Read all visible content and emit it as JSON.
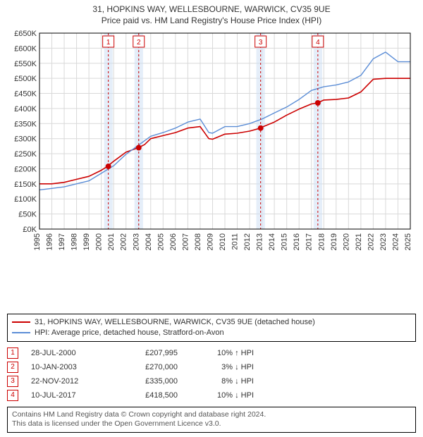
{
  "title_line1": "31, HOPKINS WAY, WELLESBOURNE, WARWICK, CV35 9UE",
  "title_line2": "Price paid vs. HM Land Registry's House Price Index (HPI)",
  "chart": {
    "type": "line",
    "background_color": "#ffffff",
    "plot_border_color": "#000000",
    "grid_color": "#d9d9d9",
    "font_size_axis": 11,
    "x": {
      "min": 1995,
      "max": 2025,
      "tick_step": 1,
      "ticks": [
        1995,
        1996,
        1997,
        1998,
        1999,
        2000,
        2001,
        2002,
        2003,
        2004,
        2005,
        2006,
        2007,
        2008,
        2009,
        2010,
        2011,
        2012,
        2013,
        2014,
        2015,
        2016,
        2017,
        2018,
        2019,
        2020,
        2021,
        2022,
        2023,
        2024,
        2025
      ]
    },
    "y": {
      "min": 0,
      "max": 650000,
      "tick_step": 50000,
      "prefix": "£",
      "suffix": "K",
      "ticks": [
        0,
        50000,
        100000,
        150000,
        200000,
        250000,
        300000,
        350000,
        400000,
        450000,
        500000,
        550000,
        600000,
        650000
      ]
    },
    "series": [
      {
        "id": "property",
        "label": "31, HOPKINS WAY, WELLESBOURNE, WARWICK, CV35 9UE (detached house)",
        "color": "#cc0000",
        "line_width": 1.6,
        "x": [
          1995,
          1996,
          1997,
          1998,
          1999,
          2000,
          2000.5,
          2001,
          2002,
          2003,
          2003.5,
          2004,
          2005,
          2006,
          2007,
          2008,
          2008.7,
          2009,
          2010,
          2011,
          2012,
          2012.9,
          2013,
          2014,
          2015,
          2016,
          2017,
          2017.5,
          2018,
          2019,
          2020,
          2021,
          2022,
          2023,
          2024,
          2025
        ],
        "y": [
          150000,
          150000,
          155000,
          165000,
          175000,
          195000,
          207995,
          225000,
          255000,
          270000,
          280000,
          300000,
          310000,
          320000,
          335000,
          340000,
          300000,
          298000,
          315000,
          318000,
          325000,
          335000,
          338000,
          355000,
          378000,
          398000,
          415000,
          418500,
          428000,
          430000,
          435000,
          455000,
          497000,
          500000,
          500000,
          500000
        ]
      },
      {
        "id": "hpi",
        "label": "HPI: Average price, detached house, Stratford-on-Avon",
        "color": "#5b8dd6",
        "line_width": 1.4,
        "x": [
          1995,
          1996,
          1997,
          1998,
          1999,
          2000,
          2001,
          2002,
          2003,
          2004,
          2005,
          2006,
          2007,
          2008,
          2008.7,
          2009,
          2010,
          2011,
          2012,
          2013,
          2014,
          2015,
          2016,
          2017,
          2018,
          2019,
          2020,
          2021,
          2022,
          2023,
          2024,
          2025
        ],
        "y": [
          130000,
          135000,
          140000,
          150000,
          160000,
          185000,
          210000,
          248000,
          278000,
          308000,
          320000,
          335000,
          355000,
          365000,
          320000,
          318000,
          340000,
          340000,
          350000,
          365000,
          385000,
          405000,
          430000,
          460000,
          472000,
          478000,
          488000,
          510000,
          565000,
          587000,
          555000,
          555000
        ]
      }
    ],
    "sale_markers": [
      {
        "n": "1",
        "date_label": "28-JUL-2000",
        "x": 2000.57,
        "price": 207995,
        "price_label": "£207,995",
        "delta_pct": "10%",
        "delta_dir": "up",
        "delta_ref": "HPI"
      },
      {
        "n": "2",
        "date_label": "10-JAN-2003",
        "x": 2003.03,
        "price": 270000,
        "price_label": "£270,000",
        "delta_pct": "3%",
        "delta_dir": "down",
        "delta_ref": "HPI"
      },
      {
        "n": "3",
        "date_label": "22-NOV-2012",
        "x": 2012.89,
        "price": 335000,
        "price_label": "£335,000",
        "delta_pct": "8%",
        "delta_dir": "down",
        "delta_ref": "HPI"
      },
      {
        "n": "4",
        "date_label": "10-JUL-2017",
        "x": 2017.52,
        "price": 418500,
        "price_label": "£418,500",
        "delta_pct": "10%",
        "delta_dir": "down",
        "delta_ref": "HPI"
      }
    ],
    "marker_style": {
      "vline_color": "#cc0000",
      "vline_dash": "3,3",
      "vline_width": 1,
      "shade_color": "#cfe0f4",
      "shade_opacity": 0.55,
      "shade_half_width_years": 0.35,
      "dot_color": "#cc0000",
      "dot_radius": 4,
      "label_box_border": "#cc0000",
      "label_box_fill": "#ffffff",
      "label_text_color": "#cc0000",
      "label_font_size": 10
    }
  },
  "legend": {
    "rows": [
      {
        "color": "#cc0000",
        "label": "31, HOPKINS WAY, WELLESBOURNE, WARWICK, CV35 9UE (detached house)"
      },
      {
        "color": "#5b8dd6",
        "label": "HPI: Average price, detached house, Stratford-on-Avon"
      }
    ]
  },
  "footer_line1": "Contains HM Land Registry data © Crown copyright and database right 2024.",
  "footer_line2": "This data is licensed under the Open Government Licence v3.0."
}
